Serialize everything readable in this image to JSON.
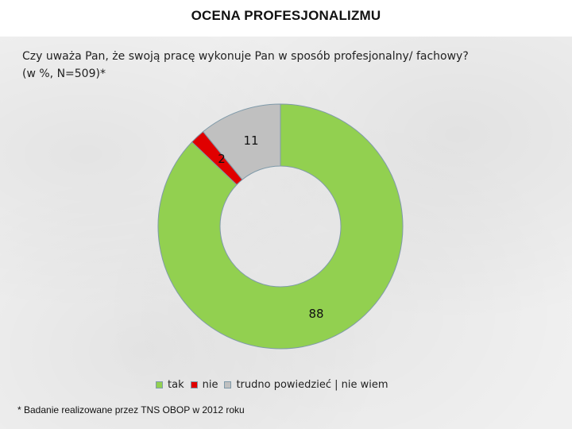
{
  "header": {
    "title": "OCENA PROFESJONALIZMU"
  },
  "question": {
    "line1": "Czy uważa Pan, że swoją pracę wykonuje Pan w sposób profesjonalny/ fachowy?",
    "line2": "(w %, N=509)*"
  },
  "chart_data": {
    "type": "pie",
    "variant": "donut",
    "categories": [
      "tak",
      "nie",
      "trudno powiedzieć | nie wiem"
    ],
    "values": [
      88,
      2,
      11
    ],
    "colors": [
      "#92d050",
      "#e00000",
      "#c0c0c0"
    ],
    "data_labels": [
      "88",
      "2",
      "11"
    ],
    "legend_position": "bottom"
  },
  "footnote": "* Badanie realizowane przez TNS OBOP w 2012 roku"
}
